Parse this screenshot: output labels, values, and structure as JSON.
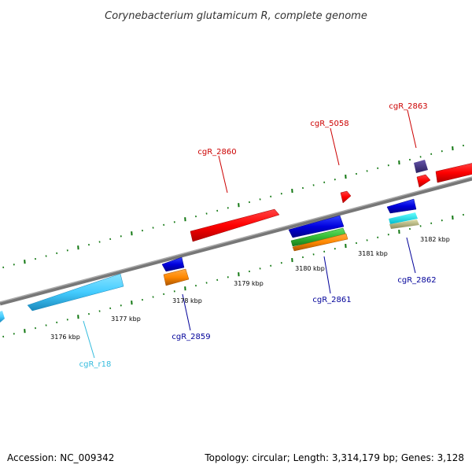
{
  "title": "Corynebacterium glutamicum R, complete genome",
  "footer": {
    "accession": "Accession: NC_009342",
    "topology": "Topology: circular; Length: 3,314,179 bp; Genes: 3,128"
  },
  "kbp_labels": [
    {
      "id": "kbp-3176",
      "text": "3176 kbp"
    },
    {
      "id": "kbp-3177",
      "text": "3177 kbp"
    },
    {
      "id": "kbp-3178",
      "text": "3178 kbp"
    },
    {
      "id": "kbp-3179",
      "text": "3179 kbp"
    },
    {
      "id": "kbp-3180",
      "text": "3180 kbp"
    },
    {
      "id": "kbp-3181",
      "text": "3181 kbp"
    },
    {
      "id": "kbp-3182",
      "text": "3182 kbp"
    }
  ],
  "gene_labels": [
    {
      "id": "cgR_2860",
      "text": "cgR_2860",
      "color": "#cc0000"
    },
    {
      "id": "cgR_5058",
      "text": "cgR_5058",
      "color": "#cc0000"
    },
    {
      "id": "cgR_2863",
      "text": "cgR_2863",
      "color": "#cc0000"
    },
    {
      "id": "cgR_2861",
      "text": "cgR_2861",
      "color": "#000099"
    },
    {
      "id": "cgR_2862",
      "text": "cgR_2862",
      "color": "#000099"
    },
    {
      "id": "cgR_2859",
      "text": "cgR_2859",
      "color": "#000099"
    },
    {
      "id": "cgR_r18",
      "text": "cgR_r18",
      "color": "#33bbdd"
    }
  ],
  "colors": {
    "backbone": "#888888",
    "tick": "#117711",
    "red_gene": "#ff0000",
    "blue_gene": "#0000dd",
    "cyan_gene": "#44ccff",
    "orange_gene": "#ff8800",
    "green_gene": "#33bb33",
    "purple_gene": "#443388",
    "tan_gene": "#bbbb88"
  }
}
